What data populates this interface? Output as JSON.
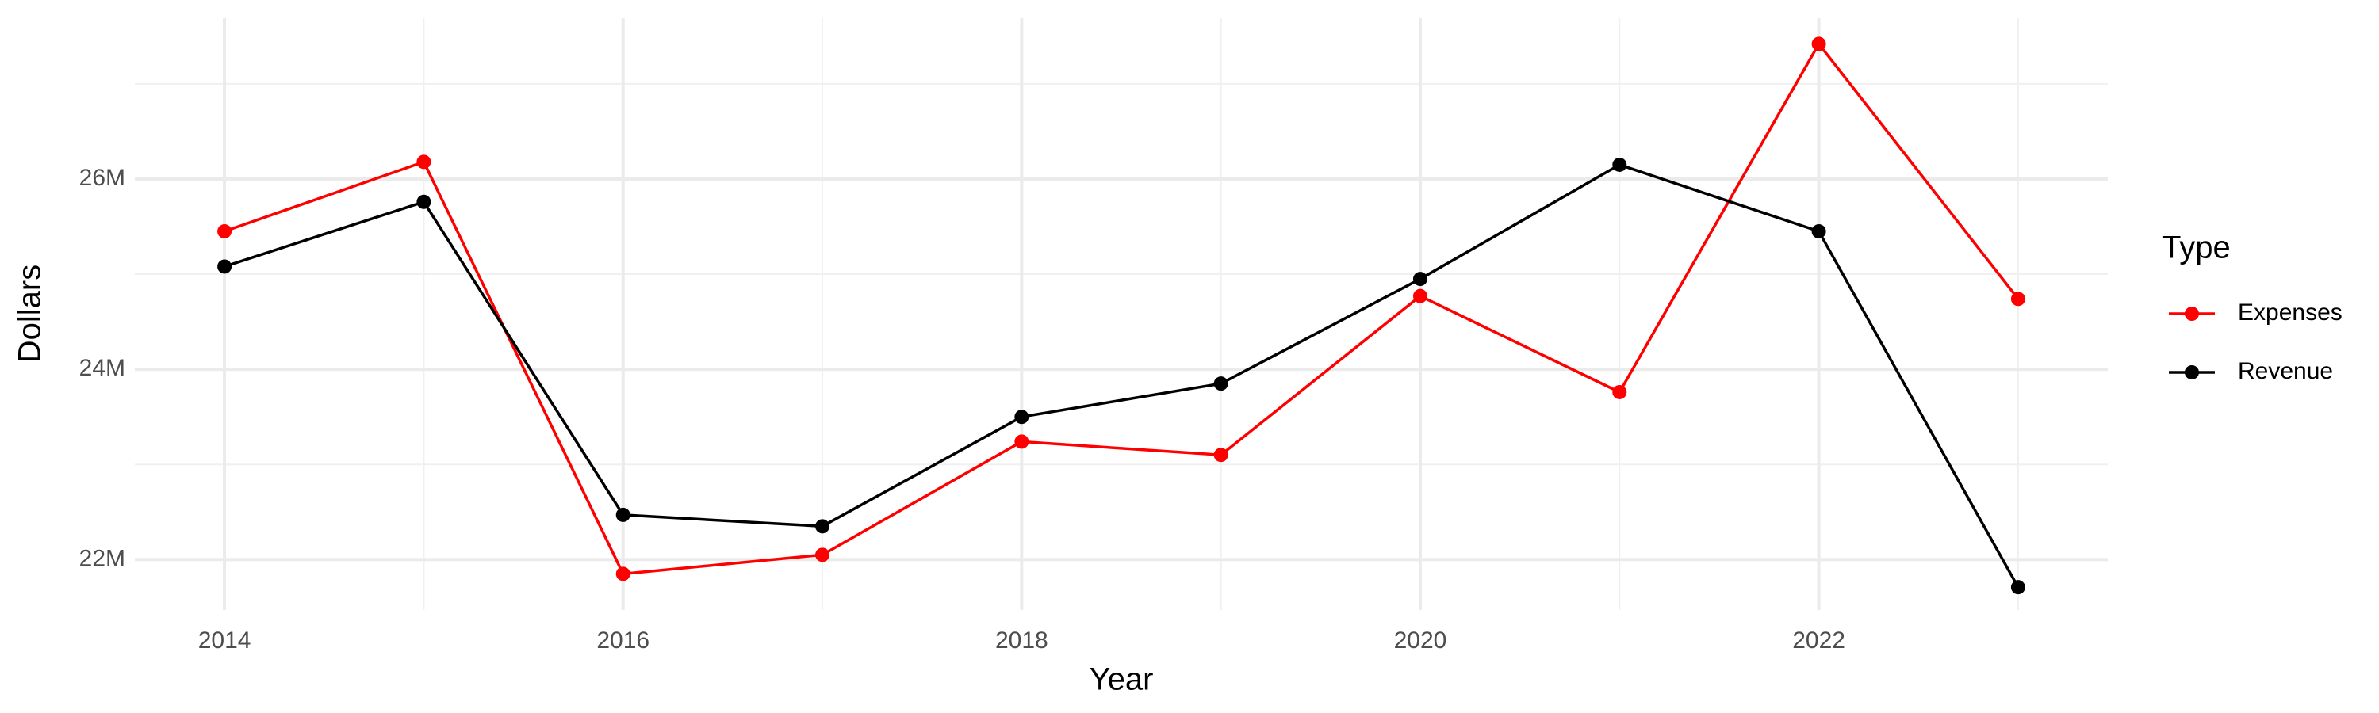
{
  "chart_data": {
    "type": "line",
    "x_label": "Year",
    "y_label": "Dollars",
    "legend_title": "Type",
    "x": [
      2014,
      2015,
      2016,
      2017,
      2018,
      2019,
      2020,
      2021,
      2022,
      2023
    ],
    "series": [
      {
        "name": "Expenses",
        "color": "#ff0000",
        "values": [
          25450000,
          26180000,
          21850000,
          22050000,
          23240000,
          23100000,
          24770000,
          23760000,
          27420000,
          24740000
        ]
      },
      {
        "name": "Revenue",
        "color": "#000000",
        "values": [
          25080000,
          25760000,
          22470000,
          22350000,
          23500000,
          23850000,
          24950000,
          26150000,
          25450000,
          21710000
        ]
      }
    ],
    "xlim": [
      2013.55,
      2023.45
    ],
    "xticks": [
      2014,
      2016,
      2018,
      2020,
      2022
    ],
    "ylim": [
      21470000,
      27690000
    ],
    "yticks": [
      {
        "value": 22000000,
        "label": "22M"
      },
      {
        "value": 24000000,
        "label": "24M"
      },
      {
        "value": 26000000,
        "label": "26M"
      }
    ],
    "grid": true,
    "legend_position": "right"
  }
}
